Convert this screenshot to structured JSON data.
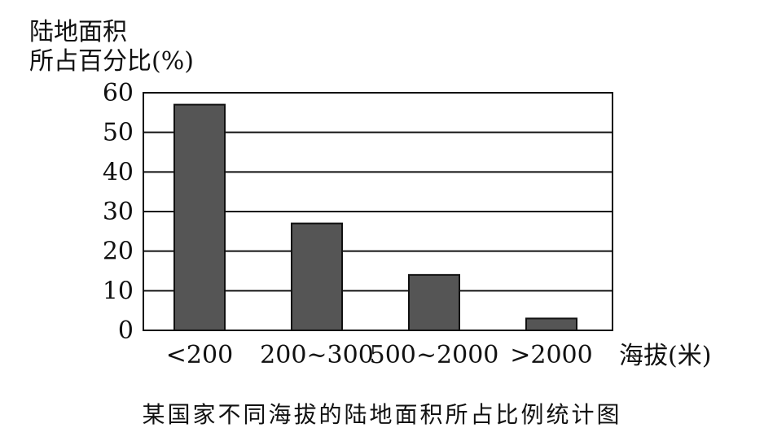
{
  "chart_data": {
    "type": "bar",
    "ylabel_line1": "陆地面积",
    "ylabel_line2": "所占百分比(%)",
    "xlabel": "海拔(米)",
    "categories": [
      "<200",
      "200~300",
      "500~2000",
      ">2000"
    ],
    "values": [
      57,
      27,
      14,
      3
    ],
    "ylim": [
      0,
      60
    ],
    "yticks": [
      "0",
      "10",
      "20",
      "30",
      "40",
      "50",
      "60"
    ],
    "grid": true,
    "caption": "某国家不同海拔的陆地面积所占比例统计图",
    "bar_color": "#555555"
  }
}
